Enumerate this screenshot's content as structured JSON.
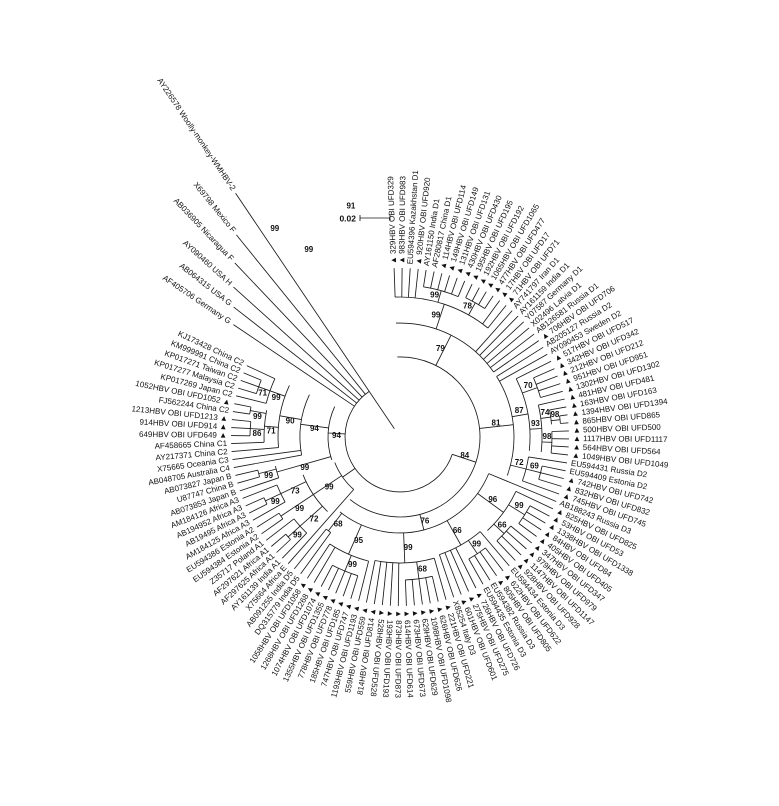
{
  "figure": {
    "type_label": "circular phylogenetic tree",
    "background": "#ffffff",
    "line_color": "#1a1a1a",
    "text_color": "#111111",
    "obi_marker_icon": "filled-triangle",
    "obi_marker_glyph": "▲"
  },
  "chart_data": {
    "type": "radial-phylogenetic-tree",
    "scale_bar": {
      "label": "0.02"
    },
    "taxa": [
      "329HBV OBI UFD329",
      "983HBV OBI UFD983",
      "EU594396 Kazakhstan D1",
      "920HBV OBI UFD920",
      "AY161150 India D1",
      "AF280817 China D1",
      "114HBV OBI UFD114",
      "149HBV OBI UFD149",
      "131HBV OBI UFD131",
      "430HBV OBI UFD430",
      "195HBV OBI UFD195",
      "192HBV OBI UFD192",
      "1065HBV OBI UFD1065",
      "477HBV OBI UFD477",
      "17HBV OBI UFD17",
      "71HBV OBI UFD71",
      "AY741797 Iran D1",
      "AY161159 India D1",
      "Y07587 Germany D1",
      "X02496 Latvia D1",
      "AB126581 Russia D1",
      "706HBV OBI UFD706",
      "AB205127 Russia D2",
      "AY090453 Sweden D2",
      "517HBV OBI UFD517",
      "342HBV OBI UFD342",
      "212HBV OBI UFD212",
      "951HBV OBI UFD951",
      "1302HBV OBI UFD1302",
      "481HBV OBI UFD481",
      "163HBV OBI UFD163",
      "1394HBV OBI UFD1394",
      "865HBV OBI UFD865",
      "500HBV OBI UFD500",
      "1117HBV OBI UFD1117",
      "564HBV OBI UFD564",
      "1049HBV OBI UFD1049",
      "EU594431 Russia D2",
      "EU594409 Estonia D2",
      "742HBV OBI UFD742",
      "832HBV OBI UFD832",
      "745HBV OBI UFD745",
      "AB188243 Russia D3",
      "825HBV OBI UFD825",
      "53HBV OBI UFD53",
      "1338HBV OBI UFD1338",
      "84HBV OBI UFD84",
      "405HBV OBI UFD405",
      "347HBV OBI UFD347",
      "979HBV OBI UFD979",
      "1147HBV OBI UFD1147",
      "928HBV OBI UFD928",
      "EU594434 Estonia D3",
      "622HBV OBI UFD622",
      "805HBV OBI UFD805",
      "EU594382 Russia D3",
      "EU594435 Estonia D3",
      "726HBV OBI UFD726",
      "275HBV OBI UFD275",
      "601HBV OBI UFD601",
      "X85254 Italy D3",
      "221HBV OBI UFD221",
      "626HBV OBI UFD626",
      "1098HBV OBI UFD1098",
      "629HBV OBI UFD629",
      "673HBV OBI UFD673",
      "614HBV OBI UFD614",
      "873HBV OBI UFD873",
      "193HBV OBI UFD193",
      "528HBV OBI UFD528",
      "814HBV OBI UFD814",
      "559HBV OBI UFD559",
      "1193HBV OBI UFD1193",
      "747HBV OBI UFD747",
      "185HBV OBI UFD185",
      "778HBV OBI UFD778",
      "1355HBV OBI UFD1355",
      "1074HBV OBI UFD1074",
      "1268HBV OBI UFD1268",
      "1058HBV OBI UFD1058",
      "DQ315779 India D5",
      "AB091255 India D5",
      "X75664 Africa E",
      "AY161139 India A1",
      "AF297625 Africa A1",
      "AF297621 Africa A1",
      "Z35717 Poland A1",
      "EU594384 Estonia A2",
      "EU594386 Estonia A2",
      "AM184125 Africa A3",
      "AB19495 Africa A3",
      "AB194952 Africa A3",
      "AM184126 Africa A3",
      "AB073853 Japan B",
      "U87747 China B",
      "AB073827 Japan B",
      "AB048705 Australia C4",
      "X75665 Oceania C3",
      "AY217371 China C2",
      "AF458665 China C1",
      "649HBV OBI UFD649",
      "914HBV OBI UFD914",
      "1213HBV OBI UFD1213",
      "FJ562244 China C2",
      "1052HBV OBI UFD1052",
      "KP017269 Japan C2",
      "KP017277 Malaysia C2",
      "KP017271 Taiwan C2",
      "KM999991 China C2",
      "KJ173428 China C2",
      "AF405706 Germany G",
      "AB064315 USA G",
      "AY090460 USA H",
      "AB036905 Nicaragua F",
      "X69798 Mexico F",
      "AY226578 Woolly-monkey-WMHBV-2"
    ],
    "outgroup": {
      "start_index": 110,
      "angles": [
        146,
        142,
        138,
        133.5,
        129,
        124
      ],
      "radii": [
        205,
        215,
        228,
        244,
        264,
        298
      ]
    },
    "clades": [
      {
        "from": 0,
        "to": 81,
        "r": 80,
        "stem": 55,
        "sup": "84"
      },
      {
        "from": 0,
        "to": 21,
        "r": 114,
        "stem": 80,
        "sup": "79"
      },
      {
        "from": 0,
        "to": 15,
        "r": 140,
        "stem": 114,
        "sup": "99"
      },
      {
        "from": 4,
        "to": 9,
        "r": 152,
        "stem": 140,
        "sup": "99"
      },
      {
        "from": 10,
        "to": 13,
        "r": 154,
        "stem": 140,
        "sup": "78"
      },
      {
        "from": 22,
        "to": 41,
        "r": 114,
        "stem": 80,
        "sup": "81"
      },
      {
        "from": 24,
        "to": 36,
        "r": 130,
        "stem": 114,
        "sup": "87"
      },
      {
        "from": 25,
        "to": 28,
        "r": 146,
        "stem": 130,
        "sup": "70"
      },
      {
        "from": 29,
        "to": 36,
        "r": 142,
        "stem": 130,
        "sup": "93"
      },
      {
        "from": 30,
        "to": 32,
        "r": 152,
        "stem": 142,
        "sup": "74"
      },
      {
        "from": 31,
        "to": 32,
        "r": 161,
        "stem": 152,
        "sup": "98"
      },
      {
        "from": 33,
        "to": 36,
        "r": 152,
        "stem": 142,
        "sup": "98"
      },
      {
        "from": 37,
        "to": 41,
        "r": 130,
        "stem": 114,
        "sup": "72"
      },
      {
        "from": 38,
        "to": 40,
        "r": 145,
        "stem": 130,
        "sup": "69"
      },
      {
        "from": 42,
        "to": 81,
        "r": 96,
        "stem": 80,
        "sup": "76"
      },
      {
        "from": 43,
        "to": 51,
        "r": 128,
        "stem": 96,
        "sup": "96"
      },
      {
        "from": 44,
        "to": 47,
        "r": 147,
        "stem": 128,
        "sup": "99"
      },
      {
        "from": 48,
        "to": 51,
        "r": 142,
        "stem": 128,
        "sup": "66"
      },
      {
        "from": 52,
        "to": 60,
        "r": 124,
        "stem": 96,
        "sup": "66"
      },
      {
        "from": 53,
        "to": 56,
        "r": 140,
        "stem": 124,
        "sup": "99"
      },
      {
        "from": 61,
        "to": 71,
        "r": 126,
        "stem": 96,
        "sup": "99"
      },
      {
        "from": 62,
        "to": 66,
        "r": 143,
        "stem": 126,
        "sup": "68"
      },
      {
        "from": 72,
        "to": 79,
        "r": 128,
        "stem": 96,
        "sup": "95"
      },
      {
        "from": 73,
        "to": 77,
        "r": 145,
        "stem": 128,
        "sup": "99"
      },
      {
        "from": 80,
        "to": 81,
        "r": 118,
        "stem": 96,
        "sup": "68"
      },
      {
        "from": 82,
        "to": 92,
        "r": 70,
        "stem": 55,
        "sup": ""
      },
      {
        "from": 83,
        "to": 92,
        "r": 104,
        "stem": 70,
        "sup": "99"
      },
      {
        "from": 83,
        "to": 86,
        "r": 134,
        "stem": 104,
        "sup": "72"
      },
      {
        "from": 84,
        "to": 85,
        "r": 150,
        "stem": 134,
        "sup": "99"
      },
      {
        "from": 87,
        "to": 88,
        "r": 143,
        "stem": 104,
        "sup": "99"
      },
      {
        "from": 89,
        "to": 92,
        "r": 132,
        "stem": 104,
        "sup": "73"
      },
      {
        "from": 90,
        "to": 91,
        "r": 149,
        "stem": 132,
        "sup": "99"
      },
      {
        "from": 93,
        "to": 109,
        "r": 72,
        "stem": 55,
        "sup": "94"
      },
      {
        "from": 93,
        "to": 95,
        "r": 128,
        "stem": 72,
        "sup": "99"
      },
      {
        "from": 94,
        "to": 95,
        "r": 146,
        "stem": 128,
        "sup": "99"
      },
      {
        "from": 96,
        "to": 109,
        "r": 100,
        "stem": 72,
        "sup": "94"
      },
      {
        "from": 98,
        "to": 109,
        "r": 122,
        "stem": 100,
        "sup": "90"
      },
      {
        "from": 99,
        "to": 104,
        "r": 136,
        "stem": 122,
        "sup": "71"
      },
      {
        "from": 100,
        "to": 102,
        "r": 150,
        "stem": 136,
        "sup": "86"
      },
      {
        "from": 103,
        "to": 104,
        "r": 152,
        "stem": 136,
        "sup": "99"
      },
      {
        "from": 105,
        "to": 109,
        "r": 138,
        "stem": 122,
        "sup": "99"
      },
      {
        "from": 106,
        "to": 108,
        "r": 150,
        "stem": 138,
        "sup": "71"
      }
    ],
    "supports_extra": [
      {
        "v": "91",
        "a": 102,
        "r": 236
      },
      {
        "v": "99",
        "a": 116,
        "r": 208
      },
      {
        "v": "99",
        "a": 121,
        "r": 243
      }
    ]
  }
}
